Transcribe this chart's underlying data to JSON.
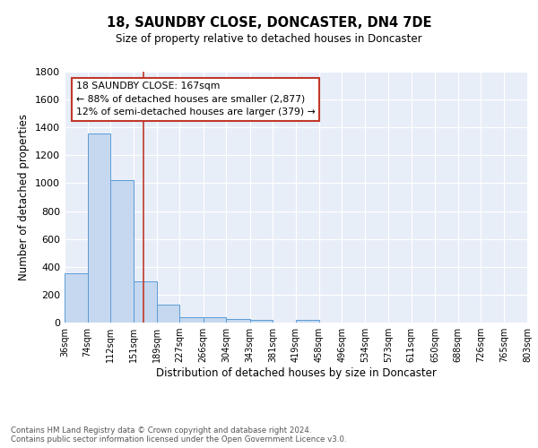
{
  "title": "18, SAUNDBY CLOSE, DONCASTER, DN4 7DE",
  "subtitle": "Size of property relative to detached houses in Doncaster",
  "xlabel": "Distribution of detached houses by size in Doncaster",
  "ylabel": "Number of detached properties",
  "bar_values": [
    352,
    1356,
    1022,
    293,
    130,
    40,
    38,
    25,
    18,
    0,
    18,
    0,
    0,
    0,
    0,
    0,
    0,
    0,
    0,
    0
  ],
  "bin_labels": [
    "36sqm",
    "74sqm",
    "112sqm",
    "151sqm",
    "189sqm",
    "227sqm",
    "266sqm",
    "304sqm",
    "343sqm",
    "381sqm",
    "419sqm",
    "458sqm",
    "496sqm",
    "534sqm",
    "573sqm",
    "611sqm",
    "650sqm",
    "688sqm",
    "726sqm",
    "765sqm",
    "803sqm"
  ],
  "bar_color": "#c5d8f0",
  "bar_edge_color": "#5b9bd5",
  "property_line_x": 167,
  "property_line_color": "#c0392b",
  "annotation_line1": "18 SAUNDBY CLOSE: 167sqm",
  "annotation_line2": "← 88% of detached houses are smaller (2,877)",
  "annotation_line3": "12% of semi-detached houses are larger (379) →",
  "annotation_box_color": "white",
  "annotation_box_edge_color": "#c0392b",
  "ylim": [
    0,
    1800
  ],
  "yticks": [
    0,
    200,
    400,
    600,
    800,
    1000,
    1200,
    1400,
    1600,
    1800
  ],
  "bg_color": "#e8eef8",
  "footer_text": "Contains HM Land Registry data © Crown copyright and database right 2024.\nContains public sector information licensed under the Open Government Licence v3.0.",
  "bin_edges": [
    36,
    74,
    112,
    151,
    189,
    227,
    266,
    304,
    343,
    381,
    419,
    458,
    496,
    534,
    573,
    611,
    650,
    688,
    726,
    765,
    803
  ]
}
